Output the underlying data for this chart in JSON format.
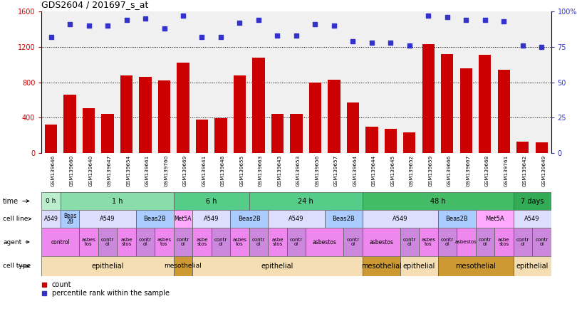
{
  "title": "GDS2604 / 201697_s_at",
  "samples": [
    "GSM139646",
    "GSM139660",
    "GSM139640",
    "GSM139647",
    "GSM139654",
    "GSM139661",
    "GSM139760",
    "GSM139669",
    "GSM139641",
    "GSM139648",
    "GSM139655",
    "GSM139663",
    "GSM139643",
    "GSM139653",
    "GSM139656",
    "GSM139657",
    "GSM139664",
    "GSM139644",
    "GSM139645",
    "GSM139652",
    "GSM139659",
    "GSM139666",
    "GSM139667",
    "GSM139668",
    "GSM139761",
    "GSM139642",
    "GSM139649"
  ],
  "counts": [
    320,
    660,
    510,
    440,
    880,
    860,
    820,
    1020,
    380,
    390,
    880,
    1080,
    440,
    440,
    800,
    830,
    570,
    300,
    270,
    230,
    1230,
    1120,
    960,
    1110,
    940,
    130,
    120
  ],
  "percentile_ranks": [
    82,
    91,
    90,
    90,
    94,
    95,
    88,
    97,
    82,
    82,
    92,
    94,
    83,
    83,
    91,
    90,
    79,
    78,
    78,
    76,
    97,
    96,
    94,
    94,
    93,
    76,
    75
  ],
  "bar_color": "#cc0000",
  "dot_color": "#3333cc",
  "ylim_left": [
    0,
    1600
  ],
  "ylim_right": [
    0,
    100
  ],
  "yticks_left": [
    0,
    400,
    800,
    1200,
    1600
  ],
  "ytick_labels_right": [
    "0",
    "25",
    "50",
    "75",
    "100%"
  ],
  "grid_lines": [
    400,
    800,
    1200
  ],
  "time_row": {
    "label": "time",
    "segments": [
      {
        "text": "0 h",
        "start": 0,
        "end": 1,
        "color": "#bbeecc"
      },
      {
        "text": "1 h",
        "start": 1,
        "end": 7,
        "color": "#88ddaa"
      },
      {
        "text": "6 h",
        "start": 7,
        "end": 11,
        "color": "#55cc88"
      },
      {
        "text": "24 h",
        "start": 11,
        "end": 17,
        "color": "#55cc88"
      },
      {
        "text": "48 h",
        "start": 17,
        "end": 25,
        "color": "#44bb66"
      },
      {
        "text": "7 days",
        "start": 25,
        "end": 27,
        "color": "#33aa55"
      }
    ]
  },
  "cell_line_row": {
    "label": "cell line",
    "segments": [
      {
        "text": "A549",
        "start": 0,
        "end": 1,
        "color": "#ddddff"
      },
      {
        "text": "Beas\n2B",
        "start": 1,
        "end": 2,
        "color": "#aaccff"
      },
      {
        "text": "A549",
        "start": 2,
        "end": 5,
        "color": "#ddddff"
      },
      {
        "text": "Beas2B",
        "start": 5,
        "end": 7,
        "color": "#aaccff"
      },
      {
        "text": "Met5A",
        "start": 7,
        "end": 8,
        "color": "#ffaaff"
      },
      {
        "text": "A549",
        "start": 8,
        "end": 10,
        "color": "#ddddff"
      },
      {
        "text": "Beas2B",
        "start": 10,
        "end": 12,
        "color": "#aaccff"
      },
      {
        "text": "A549",
        "start": 12,
        "end": 15,
        "color": "#ddddff"
      },
      {
        "text": "Beas2B",
        "start": 15,
        "end": 17,
        "color": "#aaccff"
      },
      {
        "text": "A549",
        "start": 17,
        "end": 21,
        "color": "#ddddff"
      },
      {
        "text": "Beas2B",
        "start": 21,
        "end": 23,
        "color": "#aaccff"
      },
      {
        "text": "Met5A",
        "start": 23,
        "end": 25,
        "color": "#ffaaff"
      },
      {
        "text": "A549",
        "start": 25,
        "end": 27,
        "color": "#ddddff"
      }
    ]
  },
  "agent_row": {
    "label": "agent",
    "segments": [
      {
        "text": "control",
        "start": 0,
        "end": 2,
        "color": "#ee88ee"
      },
      {
        "text": "asbes\ntos",
        "start": 2,
        "end": 3,
        "color": "#ee88ee"
      },
      {
        "text": "contr\nol",
        "start": 3,
        "end": 4,
        "color": "#cc88dd"
      },
      {
        "text": "asbe\nstos",
        "start": 4,
        "end": 5,
        "color": "#ee88ee"
      },
      {
        "text": "contr\nol",
        "start": 5,
        "end": 6,
        "color": "#cc88dd"
      },
      {
        "text": "asbes\ntos",
        "start": 6,
        "end": 7,
        "color": "#ee88ee"
      },
      {
        "text": "contr\nol",
        "start": 7,
        "end": 8,
        "color": "#cc88dd"
      },
      {
        "text": "asbe\nstos",
        "start": 8,
        "end": 9,
        "color": "#ee88ee"
      },
      {
        "text": "contr\nol",
        "start": 9,
        "end": 10,
        "color": "#cc88dd"
      },
      {
        "text": "asbes\ntos",
        "start": 10,
        "end": 11,
        "color": "#ee88ee"
      },
      {
        "text": "contr\nol",
        "start": 11,
        "end": 12,
        "color": "#cc88dd"
      },
      {
        "text": "asbe\nstos",
        "start": 12,
        "end": 13,
        "color": "#ee88ee"
      },
      {
        "text": "contr\nol",
        "start": 13,
        "end": 14,
        "color": "#cc88dd"
      },
      {
        "text": "asbestos",
        "start": 14,
        "end": 16,
        "color": "#ee88ee"
      },
      {
        "text": "contr\nol",
        "start": 16,
        "end": 17,
        "color": "#cc88dd"
      },
      {
        "text": "asbestos",
        "start": 17,
        "end": 19,
        "color": "#ee88ee"
      },
      {
        "text": "contr\nol",
        "start": 19,
        "end": 20,
        "color": "#cc88dd"
      },
      {
        "text": "asbes\ntos",
        "start": 20,
        "end": 21,
        "color": "#ee88ee"
      },
      {
        "text": "contr\nol",
        "start": 21,
        "end": 22,
        "color": "#cc88dd"
      },
      {
        "text": "asbestos",
        "start": 22,
        "end": 23,
        "color": "#ee88ee"
      },
      {
        "text": "contr\nol",
        "start": 23,
        "end": 24,
        "color": "#cc88dd"
      },
      {
        "text": "asbe\nstos",
        "start": 24,
        "end": 25,
        "color": "#ee88ee"
      },
      {
        "text": "contr\nol",
        "start": 25,
        "end": 26,
        "color": "#cc88dd"
      },
      {
        "text": "contr\nol",
        "start": 26,
        "end": 27,
        "color": "#cc88dd"
      }
    ]
  },
  "cell_type_row": {
    "label": "cell type",
    "segments": [
      {
        "text": "epithelial",
        "start": 0,
        "end": 7,
        "color": "#f5deb3"
      },
      {
        "text": "mesothelial",
        "start": 7,
        "end": 8,
        "color": "#cc9933"
      },
      {
        "text": "epithelial",
        "start": 8,
        "end": 17,
        "color": "#f5deb3"
      },
      {
        "text": "mesothelial",
        "start": 17,
        "end": 19,
        "color": "#cc9933"
      },
      {
        "text": "epithelial",
        "start": 19,
        "end": 21,
        "color": "#f5deb3"
      },
      {
        "text": "mesothelial",
        "start": 21,
        "end": 25,
        "color": "#cc9933"
      },
      {
        "text": "epithelial",
        "start": 25,
        "end": 27,
        "color": "#f5deb3"
      }
    ]
  },
  "chart_bg": "#f0f0f0",
  "ticklabel_bg": "#dddddd"
}
